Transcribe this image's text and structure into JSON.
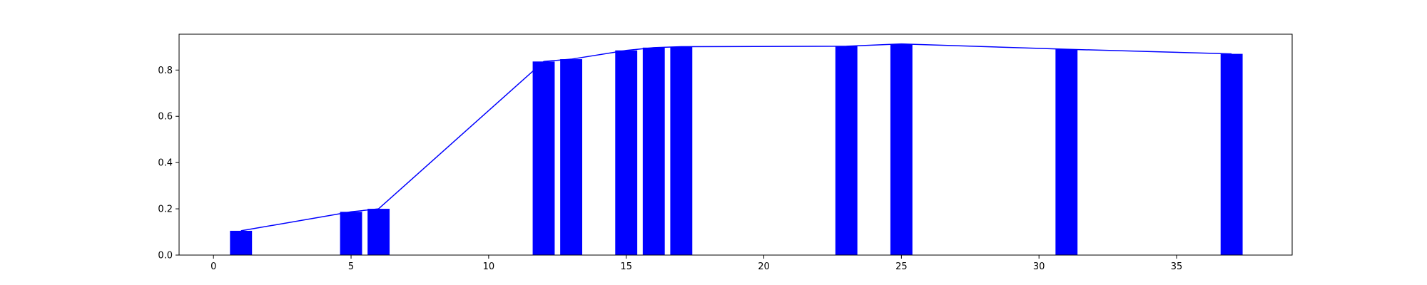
{
  "chart_data": {
    "type": "bar",
    "title": "",
    "xlabel": "",
    "ylabel": "",
    "xlim": [
      -1.25,
      39.2
    ],
    "ylim": [
      0,
      0.955
    ],
    "grid": false,
    "bar_width": 0.8,
    "x": [
      1,
      5,
      6,
      12,
      13,
      15,
      16,
      17,
      23,
      25,
      31,
      37
    ],
    "values": [
      0.105,
      0.187,
      0.2,
      0.837,
      0.847,
      0.885,
      0.897,
      0.901,
      0.903,
      0.913,
      0.89,
      0.87
    ],
    "line": {
      "x": [
        1,
        5,
        6,
        12,
        13,
        15,
        16,
        17,
        23,
        25,
        31,
        37
      ],
      "y": [
        0.105,
        0.187,
        0.2,
        0.837,
        0.847,
        0.885,
        0.897,
        0.901,
        0.903,
        0.913,
        0.89,
        0.87
      ]
    },
    "x_ticks": [
      0,
      5,
      10,
      15,
      20,
      25,
      30,
      35
    ],
    "x_tick_labels": [
      "0",
      "5",
      "10",
      "15",
      "20",
      "25",
      "30",
      "35"
    ],
    "y_ticks": [
      0.0,
      0.2,
      0.4,
      0.6,
      0.8
    ],
    "y_tick_labels": [
      "0.0",
      "0.2",
      "0.4",
      "0.6",
      "0.8"
    ],
    "colors": {
      "bar": "#0000ff",
      "line": "#0000ff",
      "axes": "#000000"
    }
  }
}
